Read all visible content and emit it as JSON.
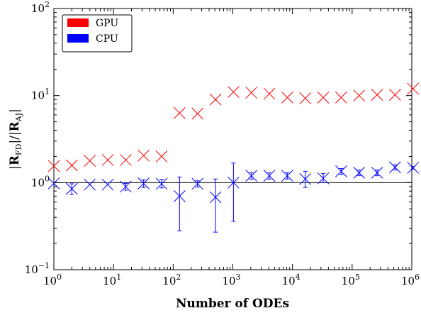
{
  "chart_data": {
    "type": "scatter",
    "title": "",
    "xlabel": "Number of ODEs",
    "ylabel": "|R_FD| / |R_AJ|",
    "xscale": "log",
    "yscale": "log",
    "xlim": [
      1,
      1000000
    ],
    "ylim": [
      0.1,
      100
    ],
    "grid": false,
    "legend_position": "top-left",
    "reference_line": {
      "y": 1.0,
      "color": "#000000"
    },
    "x_ticks": [
      {
        "base": "10",
        "exp": "0"
      },
      {
        "base": "10",
        "exp": "1"
      },
      {
        "base": "10",
        "exp": "2"
      },
      {
        "base": "10",
        "exp": "3"
      },
      {
        "base": "10",
        "exp": "4"
      },
      {
        "base": "10",
        "exp": "5"
      },
      {
        "base": "10",
        "exp": "6"
      }
    ],
    "y_ticks": [
      {
        "base": "10",
        "exp": "−1"
      },
      {
        "base": "10",
        "exp": "0"
      },
      {
        "base": "10",
        "exp": "1"
      },
      {
        "base": "10",
        "exp": "2"
      }
    ],
    "x": [
      1,
      2,
      4,
      8,
      16,
      32,
      64,
      128,
      256,
      512,
      1024,
      2048,
      4096,
      8192,
      16384,
      32768,
      65536,
      131072,
      262144,
      524288,
      1048576
    ],
    "series": [
      {
        "name": "GPU",
        "color": "#ff0000",
        "values": [
          1.55,
          1.58,
          1.78,
          1.82,
          1.82,
          2.05,
          2.0,
          6.3,
          6.2,
          9.0,
          11.0,
          10.8,
          10.5,
          9.5,
          9.3,
          9.5,
          9.5,
          10.0,
          10.2,
          10.2,
          12.0
        ],
        "err": [
          0,
          0,
          0,
          0,
          0,
          0,
          0,
          0,
          0,
          0,
          0,
          0,
          0,
          0,
          0,
          0,
          0,
          0,
          0,
          0,
          0
        ]
      },
      {
        "name": "CPU",
        "color": "#0000ff",
        "values": [
          0.98,
          0.85,
          0.95,
          0.95,
          0.9,
          0.98,
          0.97,
          0.7,
          0.97,
          0.68,
          1.0,
          1.2,
          1.2,
          1.2,
          1.1,
          1.12,
          1.35,
          1.3,
          1.3,
          1.5,
          1.48
        ],
        "err_low": [
          0,
          0.12,
          0,
          0,
          0.08,
          0.1,
          0.1,
          0.42,
          0.08,
          0.41,
          0.64,
          0.1,
          0.1,
          0.1,
          0.22,
          0.12,
          0.1,
          0.1,
          0.1,
          0.1,
          0.05
        ],
        "err_high": [
          0,
          0.12,
          0,
          0,
          0.08,
          0.1,
          0.12,
          0.46,
          0.08,
          0.42,
          0.68,
          0.1,
          0.1,
          0.1,
          0.25,
          0.15,
          0.1,
          0.1,
          0.1,
          0.1,
          0.05
        ]
      }
    ]
  }
}
